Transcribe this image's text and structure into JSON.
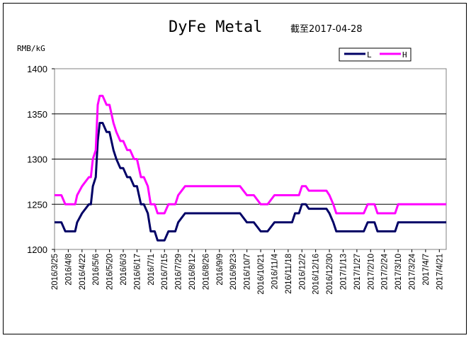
{
  "chart_data": {
    "type": "line",
    "title": "DyFe Metal",
    "date_label": "截至2017-04-28",
    "ylabel": "RMB/kG",
    "xlabel": "",
    "ylim": [
      1200,
      1400
    ],
    "yticks": [
      1200,
      1250,
      1300,
      1350,
      1400
    ],
    "grid": "horizontal",
    "legend_position": "top-right",
    "x_tick_labels": [
      "2016/3/25",
      "2016/4/8",
      "2016/4/22",
      "2016/5/6",
      "2016/5/20",
      "2016/6/3",
      "2016/6/17",
      "2016/7/1",
      "2016/7/15",
      "2016/7/29",
      "2016/8/12",
      "2016/8/26",
      "2016/9/9",
      "2016/9/23",
      "2016/10/7",
      "2016/10/21",
      "2016/11/4",
      "2016/11/18",
      "2016/12/2",
      "2016/12/16",
      "2016/12/30",
      "2017/1/13",
      "2017/1/27",
      "2017/2/10",
      "2017/2/24",
      "2017/3/10",
      "2017/3/24",
      "2017/4/7",
      "2017/4/21"
    ],
    "x": [
      "2016-03-25",
      "2016-04-01",
      "2016-04-05",
      "2016-04-15",
      "2016-04-17",
      "2016-04-22",
      "2016-04-29",
      "2016-05-01",
      "2016-05-03",
      "2016-05-06",
      "2016-05-08",
      "2016-05-10",
      "2016-05-13",
      "2016-05-17",
      "2016-05-20",
      "2016-05-24",
      "2016-05-27",
      "2016-05-31",
      "2016-06-03",
      "2016-06-07",
      "2016-06-10",
      "2016-06-14",
      "2016-06-17",
      "2016-06-21",
      "2016-06-24",
      "2016-06-28",
      "2016-07-01",
      "2016-07-05",
      "2016-07-08",
      "2016-07-12",
      "2016-07-15",
      "2016-07-19",
      "2016-07-22",
      "2016-07-26",
      "2016-07-29",
      "2016-08-05",
      "2016-08-12",
      "2016-08-26",
      "2016-09-09",
      "2016-09-23",
      "2016-09-30",
      "2016-10-07",
      "2016-10-14",
      "2016-10-21",
      "2016-10-28",
      "2016-11-04",
      "2016-11-11",
      "2016-11-18",
      "2016-11-22",
      "2016-11-25",
      "2016-11-29",
      "2016-12-02",
      "2016-12-06",
      "2016-12-09",
      "2016-12-16",
      "2016-12-23",
      "2016-12-27",
      "2016-12-30",
      "2017-01-03",
      "2017-01-06",
      "2017-01-13",
      "2017-01-20",
      "2017-01-27",
      "2017-02-03",
      "2017-02-07",
      "2017-02-10",
      "2017-02-14",
      "2017-02-17",
      "2017-02-24",
      "2017-03-03",
      "2017-03-07",
      "2017-03-10",
      "2017-03-17",
      "2017-03-24",
      "2017-03-31",
      "2017-04-07",
      "2017-04-14",
      "2017-04-21",
      "2017-04-28"
    ],
    "series": [
      {
        "name": "L",
        "color": "#000066",
        "values": [
          1230,
          1230,
          1220,
          1220,
          1230,
          1240,
          1250,
          1250,
          1270,
          1280,
          1320,
          1340,
          1340,
          1330,
          1330,
          1310,
          1300,
          1290,
          1290,
          1280,
          1280,
          1270,
          1270,
          1250,
          1250,
          1240,
          1220,
          1220,
          1210,
          1210,
          1210,
          1220,
          1220,
          1220,
          1230,
          1240,
          1240,
          1240,
          1240,
          1240,
          1240,
          1230,
          1230,
          1220,
          1220,
          1230,
          1230,
          1230,
          1230,
          1240,
          1240,
          1250,
          1250,
          1245,
          1245,
          1245,
          1245,
          1240,
          1230,
          1220,
          1220,
          1220,
          1220,
          1220,
          1230,
          1230,
          1230,
          1220,
          1220,
          1220,
          1220,
          1230,
          1230,
          1230,
          1230,
          1230,
          1230,
          1230,
          1230
        ]
      },
      {
        "name": "H",
        "color": "#ff00ff",
        "values": [
          1260,
          1260,
          1250,
          1250,
          1260,
          1270,
          1280,
          1280,
          1300,
          1310,
          1360,
          1370,
          1370,
          1360,
          1360,
          1340,
          1330,
          1320,
          1320,
          1310,
          1310,
          1300,
          1300,
          1280,
          1280,
          1270,
          1250,
          1250,
          1240,
          1240,
          1240,
          1250,
          1250,
          1250,
          1260,
          1270,
          1270,
          1270,
          1270,
          1270,
          1270,
          1260,
          1260,
          1250,
          1250,
          1260,
          1260,
          1260,
          1260,
          1260,
          1260,
          1270,
          1270,
          1265,
          1265,
          1265,
          1265,
          1260,
          1250,
          1240,
          1240,
          1240,
          1240,
          1240,
          1250,
          1250,
          1250,
          1240,
          1240,
          1240,
          1240,
          1250,
          1250,
          1250,
          1250,
          1250,
          1250,
          1250,
          1250
        ]
      }
    ]
  }
}
